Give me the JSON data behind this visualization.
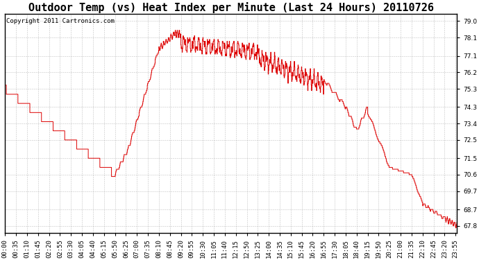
{
  "title": "Outdoor Temp (vs) Heat Index per Minute (Last 24 Hours) 20110726",
  "copyright": "Copyright 2011 Cartronics.com",
  "line_color": "#dd0000",
  "background_color": "#ffffff",
  "grid_color": "#999999",
  "yticks": [
    67.8,
    68.7,
    69.7,
    70.6,
    71.5,
    72.5,
    73.4,
    74.3,
    75.3,
    76.2,
    77.1,
    78.1,
    79.0
  ],
  "ylim": [
    67.4,
    79.4
  ],
  "xtick_labels": [
    "00:00",
    "00:35",
    "01:10",
    "01:45",
    "02:20",
    "02:55",
    "03:30",
    "04:05",
    "04:40",
    "05:15",
    "05:50",
    "06:25",
    "07:00",
    "07:35",
    "08:10",
    "08:45",
    "09:20",
    "09:55",
    "10:30",
    "11:05",
    "11:40",
    "12:15",
    "12:50",
    "13:25",
    "14:00",
    "14:35",
    "15:10",
    "15:45",
    "16:20",
    "16:55",
    "17:30",
    "18:05",
    "18:40",
    "19:15",
    "19:50",
    "20:25",
    "21:00",
    "21:35",
    "22:10",
    "22:45",
    "23:20",
    "23:55"
  ],
  "title_fontsize": 11,
  "copyright_fontsize": 6.5,
  "tick_fontsize": 6.5,
  "figwidth": 6.9,
  "figheight": 3.75,
  "dpi": 100
}
